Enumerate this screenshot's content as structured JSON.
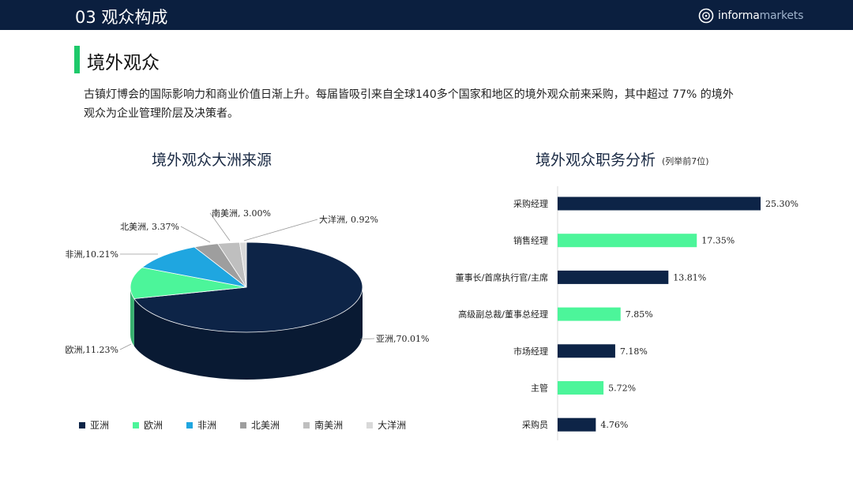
{
  "header": {
    "title": "03 观众构成",
    "logo_text_bold": "informa",
    "logo_text_light": "markets"
  },
  "section": {
    "title": "境外观众",
    "intro": "古镇灯博会的国际影响力和商业价值日渐上升。每届皆吸引来自全球140多个国家和地区的境外观众前来采购，其中超过 77% 的境外观众为企业管理阶层及决策者。"
  },
  "colors": {
    "navy": "#0d2447",
    "green": "#4cf59a",
    "blue": "#1fa6e0",
    "gray1": "#9e9e9e",
    "gray2": "#bfbfbf",
    "gray3": "#d9d9d9",
    "accent": "#1ec96a"
  },
  "chart_data": [
    {
      "type": "pie",
      "title": "境外观众大洲来源",
      "legend_position": "bottom",
      "slices": [
        {
          "name": "亚洲",
          "value": 70.01,
          "label": "亚洲,70.01%",
          "color": "#0d2447"
        },
        {
          "name": "欧洲",
          "value": 11.23,
          "label": "欧洲,11.23%",
          "color": "#4cf59a"
        },
        {
          "name": "非洲",
          "value": 10.21,
          "label": "非洲,10.21%",
          "color": "#1fa6e0"
        },
        {
          "name": "北美洲",
          "value": 3.37,
          "label": "北美洲, 3.37%",
          "color": "#9e9e9e"
        },
        {
          "name": "南美洲",
          "value": 3.0,
          "label": "南美洲, 3.00%",
          "color": "#bfbfbf"
        },
        {
          "name": "大洋洲",
          "value": 0.92,
          "label": "大洋洲, 0.92%",
          "color": "#d9d9d9"
        }
      ]
    },
    {
      "type": "bar",
      "orientation": "horizontal",
      "title": "境外观众职务分析",
      "subtitle": "(列举前7位)",
      "categories": [
        "采购经理",
        "销售经理",
        "董事长/首席执行官/主席",
        "高级副总裁/董事总经理",
        "市场经理",
        "主管",
        "采购员"
      ],
      "values": [
        25.3,
        17.35,
        13.81,
        7.85,
        7.18,
        5.72,
        4.76
      ],
      "value_labels": [
        "25.30%",
        "17.35%",
        "13.81%",
        "7.85%",
        "7.18%",
        "5.72%",
        "4.76%"
      ],
      "colors": [
        "#0d2447",
        "#4cf59a",
        "#0d2447",
        "#4cf59a",
        "#0d2447",
        "#4cf59a",
        "#0d2447"
      ],
      "xlim": [
        0,
        25.3
      ]
    }
  ]
}
